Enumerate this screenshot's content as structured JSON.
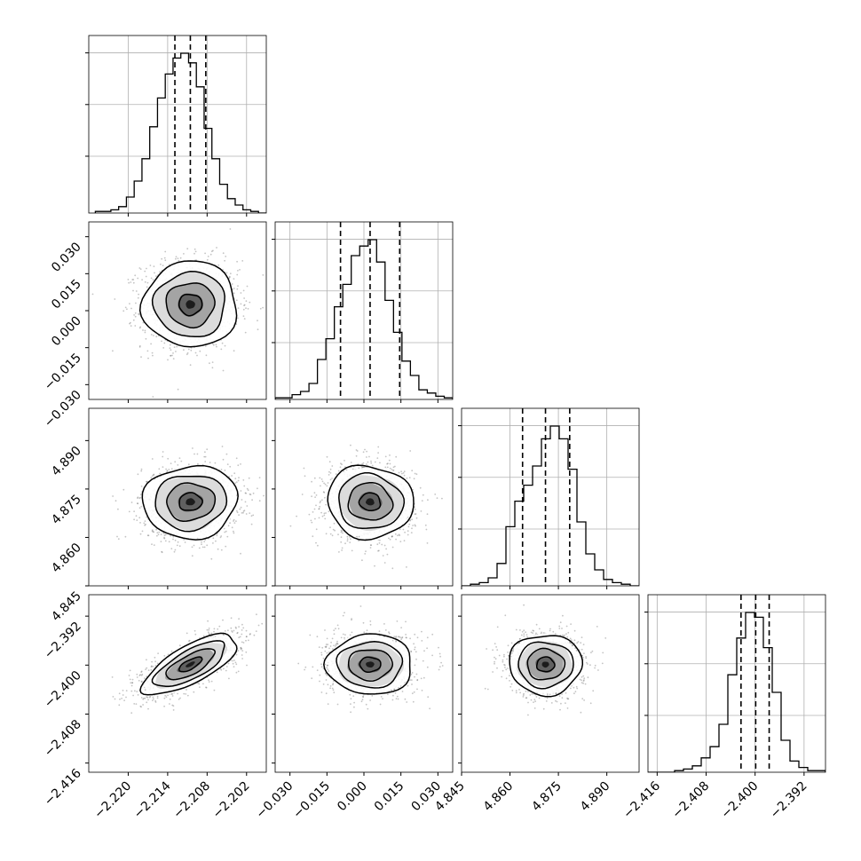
{
  "figure": {
    "type": "corner",
    "parameters": 4,
    "colors": {
      "line": "#000000",
      "grid": "#b0b0b0",
      "scatter": "#555555"
    }
  },
  "chart_data": [
    {
      "type": "histogram",
      "param_index": 0,
      "xlim": [
        -2.226,
        -2.199
      ],
      "bin_edges_range": [
        -2.225,
        -2.199
      ],
      "counts": [
        1,
        1,
        2,
        4,
        10,
        20,
        34,
        54,
        72,
        87,
        97,
        100,
        94,
        79,
        53,
        34,
        18,
        9,
        5,
        2,
        1,
        0
      ],
      "quantiles": [
        -2.2129,
        -2.21055,
        -2.2082
      ],
      "xticks": [
        "−2.220",
        "−2.214",
        "−2.208",
        "−2.202"
      ],
      "xtick_values": [
        -2.22,
        -2.214,
        -2.208,
        -2.202
      ],
      "grid": true
    },
    {
      "type": "histogram",
      "param_index": 1,
      "xlim": [
        -0.036,
        0.036
      ],
      "counts": [
        1,
        1,
        3,
        5,
        10,
        25,
        38,
        58,
        72,
        90,
        96,
        100,
        86,
        62,
        42,
        24,
        15,
        6,
        4,
        2,
        1
      ],
      "quantiles": [
        -0.0095,
        0.0025,
        0.0145
      ],
      "xticks": [
        "−0.030",
        "−0.015",
        "0.000",
        "0.015",
        "0.030"
      ],
      "xtick_values": [
        -0.03,
        -0.015,
        0.0,
        0.015,
        0.03
      ],
      "grid": true
    },
    {
      "type": "histogram",
      "param_index": 2,
      "xlim": [
        4.845,
        4.9
      ],
      "counts": [
        0,
        1,
        2,
        5,
        14,
        37,
        53,
        63,
        75,
        92,
        100,
        92,
        73,
        40,
        20,
        10,
        4,
        2,
        1,
        0
      ],
      "quantiles": [
        4.8639,
        4.871,
        4.8785
      ],
      "xticks": [
        "4.845",
        "4.860",
        "4.875",
        "4.890"
      ],
      "xtick_values": [
        4.845,
        4.86,
        4.875,
        4.89
      ],
      "grid": true
    },
    {
      "type": "histogram",
      "param_index": 3,
      "xlim": [
        -2.4175,
        -2.3885
      ],
      "counts": [
        0,
        0,
        0,
        1,
        2,
        4,
        9,
        16,
        30,
        61,
        84,
        100,
        97,
        78,
        50,
        20,
        7,
        3,
        1,
        1
      ],
      "quantiles": [
        -2.4023,
        -2.3999,
        -2.3977
      ],
      "xticks": [
        "−2.416",
        "−2.408",
        "−2.400",
        "−2.392"
      ],
      "xtick_values": [
        -2.416,
        -2.408,
        -2.4,
        -2.392
      ],
      "grid": true
    },
    {
      "type": "contour-scatter",
      "x_param": 0,
      "y_param": 1,
      "center": [
        -2.21055,
        0.0025
      ],
      "sigma": [
        0.0035,
        0.0085
      ],
      "correlation": 0.0,
      "yticks": [
        "−0.030",
        "−0.015",
        "0.000",
        "0.015",
        "0.030"
      ],
      "ytick_values": [
        -0.03,
        -0.015,
        0.0,
        0.015,
        0.03
      ]
    },
    {
      "type": "contour-scatter",
      "x_param": 0,
      "y_param": 2,
      "center": [
        -2.21055,
        4.871
      ],
      "sigma": [
        0.0035,
        0.0055
      ],
      "correlation": 0.05,
      "yticks": [
        "4.845",
        "4.860",
        "4.875",
        "4.890"
      ],
      "ytick_values": [
        4.845,
        4.86,
        4.875,
        4.89
      ]
    },
    {
      "type": "contour-scatter",
      "x_param": 1,
      "y_param": 2,
      "center": [
        0.0025,
        4.871
      ],
      "sigma": [
        0.0085,
        0.0055
      ],
      "correlation": -0.05
    },
    {
      "type": "contour-scatter",
      "x_param": 0,
      "y_param": 3,
      "center": [
        -2.21055,
        -2.3999
      ],
      "sigma": [
        0.0035,
        0.0024
      ],
      "correlation": 0.72,
      "yticks": [
        "−2.392",
        "−2.400",
        "−2.408",
        "−2.416"
      ],
      "ytick_values": [
        -2.392,
        -2.4,
        -2.408,
        -2.416
      ]
    },
    {
      "type": "contour-scatter",
      "x_param": 1,
      "y_param": 3,
      "center": [
        0.0025,
        -2.3999
      ],
      "sigma": [
        0.0085,
        0.0024
      ],
      "correlation": 0.0
    },
    {
      "type": "contour-scatter",
      "x_param": 2,
      "y_param": 3,
      "center": [
        4.871,
        -2.3999
      ],
      "sigma": [
        0.0055,
        0.0024
      ],
      "correlation": 0.0
    }
  ]
}
